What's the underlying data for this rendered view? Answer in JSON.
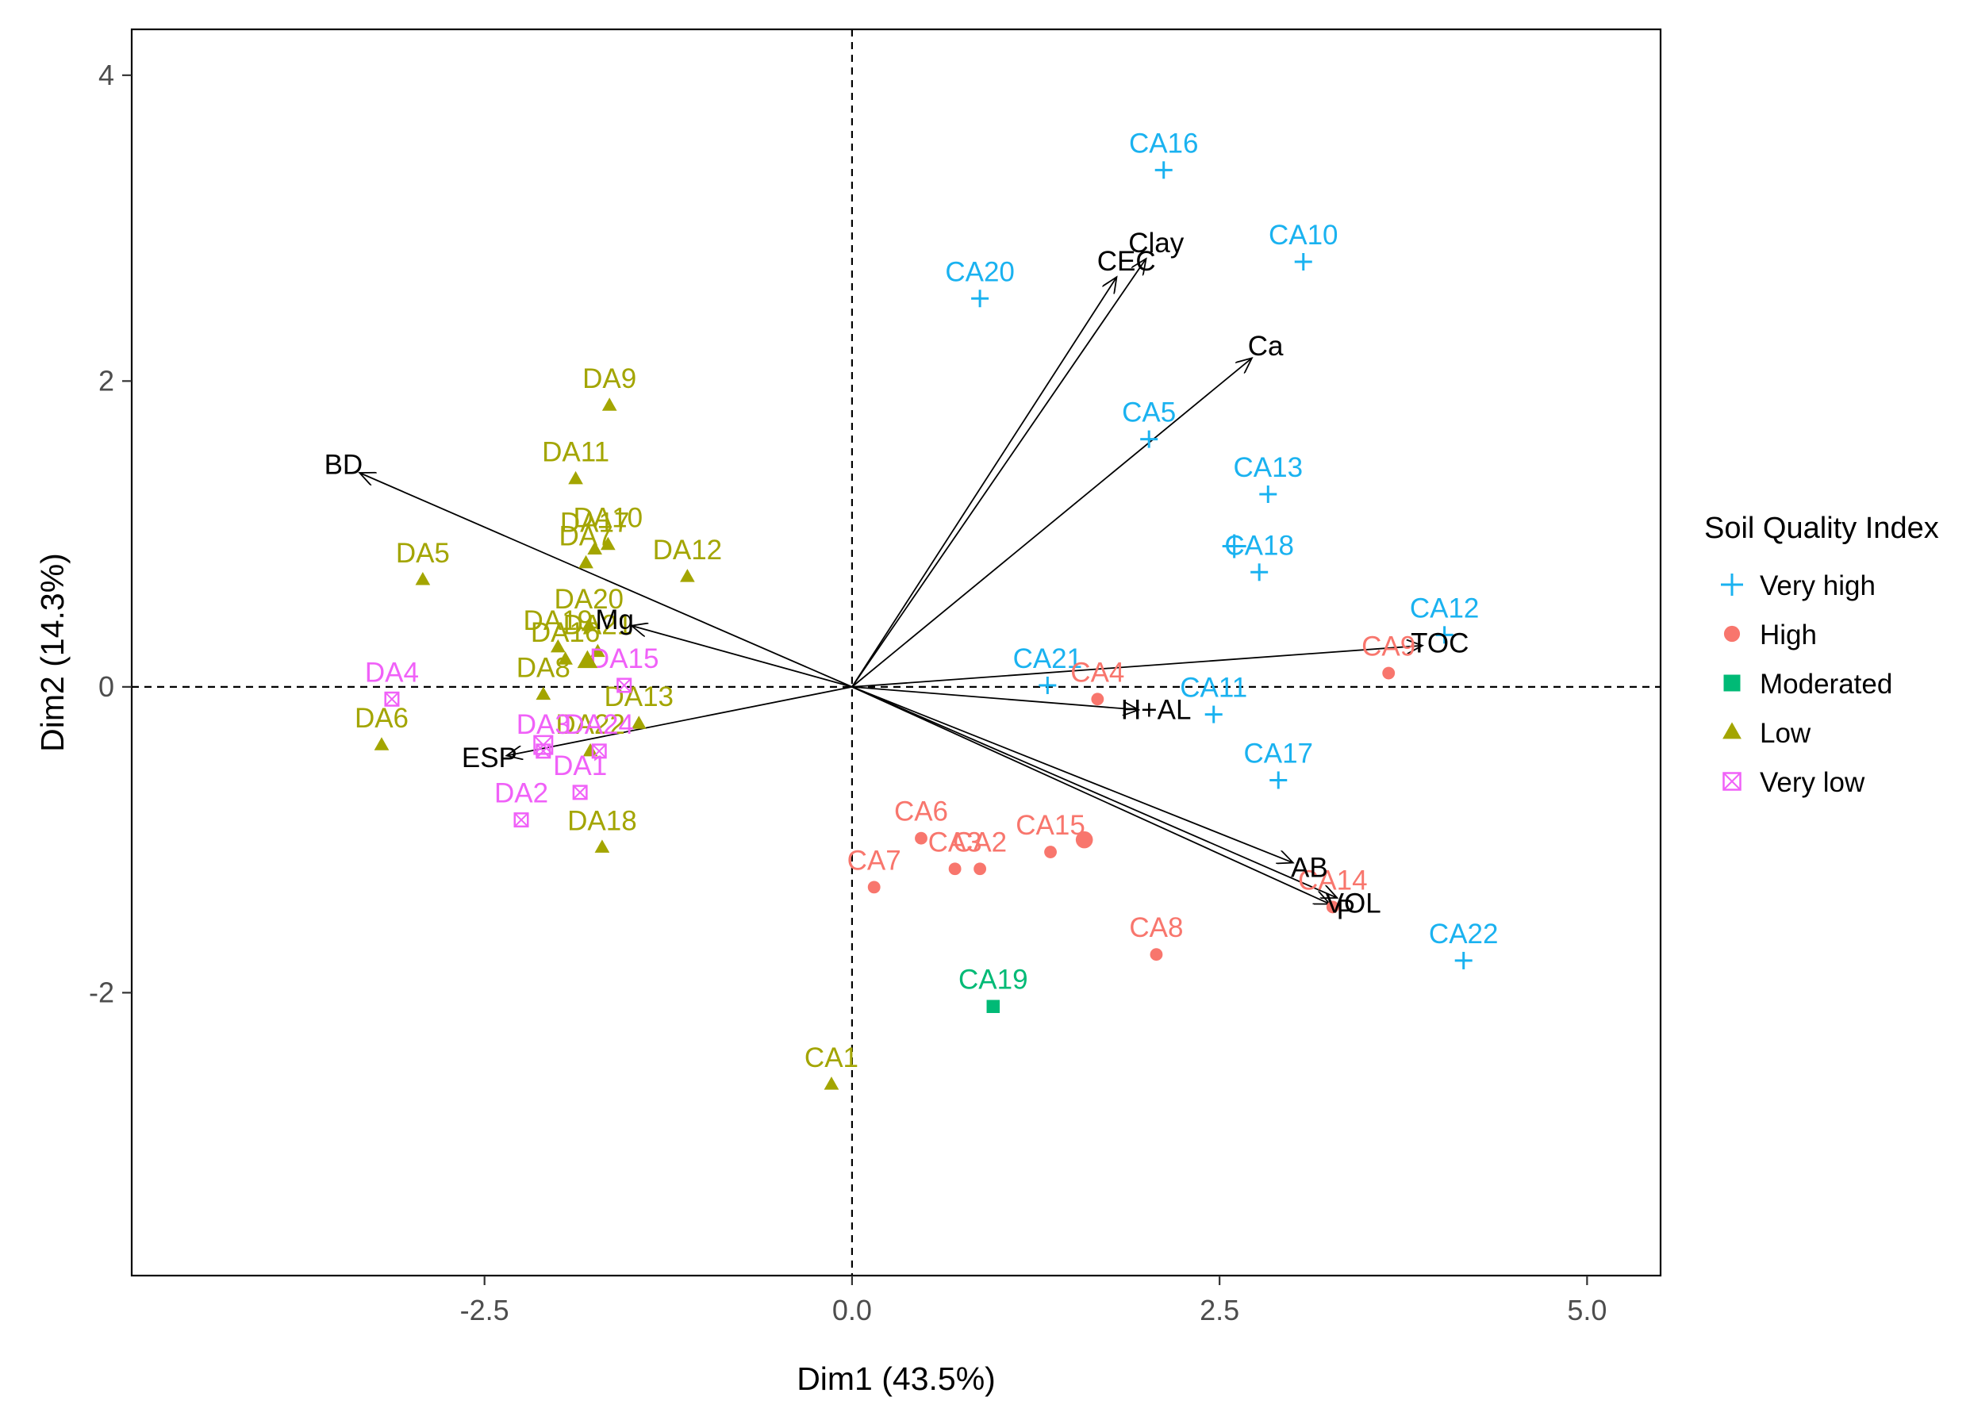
{
  "chart_data": {
    "type": "scatter",
    "subtype": "pca-biplot",
    "xlabel": "Dim1 (43.5%)",
    "ylabel": "Dim2 (14.3%)",
    "xlim": [
      -4.9,
      5.5
    ],
    "ylim": [
      -3.85,
      4.3
    ],
    "xticks": [
      {
        "value": -2.5,
        "label": "-2.5"
      },
      {
        "value": 0.0,
        "label": "0.0"
      },
      {
        "value": 2.5,
        "label": "2.5"
      },
      {
        "value": 5.0,
        "label": "5.0"
      }
    ],
    "yticks": [
      {
        "value": -2,
        "label": "-2"
      },
      {
        "value": 0,
        "label": "0"
      },
      {
        "value": 2,
        "label": "2"
      },
      {
        "value": 4,
        "label": "4"
      }
    ],
    "grid": false,
    "legend": {
      "title": "Soil Quality Index",
      "position": "right",
      "entries": [
        {
          "key": "very_high",
          "label": "Very high",
          "color": "#1ab2f0",
          "marker": "plus"
        },
        {
          "key": "high",
          "label": "High",
          "color": "#f8766d",
          "marker": "circle"
        },
        {
          "key": "moderated",
          "label": "Moderated",
          "color": "#00ba76",
          "marker": "square"
        },
        {
          "key": "low",
          "label": "Low",
          "color": "#a3a500",
          "marker": "triangle"
        },
        {
          "key": "very_low",
          "label": "Very low",
          "color": "#f061f8",
          "marker": "boxx"
        }
      ]
    },
    "vectors": [
      {
        "label": "BD",
        "x": -3.35,
        "y": 1.4
      },
      {
        "label": "Mg",
        "x": -1.5,
        "y": 0.4
      },
      {
        "label": "ESP",
        "x": -2.35,
        "y": -0.45
      },
      {
        "label": "CEC",
        "x": 1.8,
        "y": 2.68
      },
      {
        "label": "Clay",
        "x": 2.0,
        "y": 2.8
      },
      {
        "label": "Ca",
        "x": 2.72,
        "y": 2.15
      },
      {
        "label": "TOC",
        "x": 3.88,
        "y": 0.27
      },
      {
        "label": "H+AL",
        "x": 1.95,
        "y": -0.15
      },
      {
        "label": "AB",
        "x": 3.0,
        "y": -1.15
      },
      {
        "label": "P",
        "x": 3.25,
        "y": -1.42
      },
      {
        "label": "VOL",
        "x": 3.3,
        "y": -1.38
      }
    ],
    "points": [
      {
        "label": "CA16",
        "x": 2.12,
        "y": 3.38,
        "group": "very_high"
      },
      {
        "label": "CA10",
        "x": 3.07,
        "y": 2.78,
        "group": "very_high"
      },
      {
        "label": "CA20",
        "x": 0.87,
        "y": 2.54,
        "group": "very_high"
      },
      {
        "label": "CA5",
        "x": 2.02,
        "y": 1.62,
        "group": "very_high"
      },
      {
        "label": "CA13",
        "x": 2.83,
        "y": 1.26,
        "group": "very_high"
      },
      {
        "label": "CA18",
        "x": 2.77,
        "y": 0.75,
        "group": "very_high"
      },
      {
        "label": "CA12",
        "x": 4.03,
        "y": 0.34,
        "group": "very_high"
      },
      {
        "label": "CA21",
        "x": 1.33,
        "y": 0.01,
        "group": "very_high"
      },
      {
        "label": "CA11",
        "x": 2.46,
        "y": -0.18,
        "group": "very_high"
      },
      {
        "label": "CA17",
        "x": 2.9,
        "y": -0.61,
        "group": "very_high"
      },
      {
        "label": "CA22",
        "x": 4.16,
        "y": -1.79,
        "group": "very_high"
      },
      {
        "label": "CA9",
        "x": 3.65,
        "y": 0.09,
        "group": "high"
      },
      {
        "label": "CA4",
        "x": 1.67,
        "y": -0.08,
        "group": "high"
      },
      {
        "label": "CA6",
        "x": 0.47,
        "y": -0.99,
        "group": "high"
      },
      {
        "label": "CA3",
        "x": 0.7,
        "y": -1.19,
        "group": "high"
      },
      {
        "label": "CA2",
        "x": 0.87,
        "y": -1.19,
        "group": "high"
      },
      {
        "label": "CA15",
        "x": 1.35,
        "y": -1.08,
        "group": "high"
      },
      {
        "label": "CA7",
        "x": 0.15,
        "y": -1.31,
        "group": "high"
      },
      {
        "label": "CA14",
        "x": 3.27,
        "y": -1.44,
        "group": "high"
      },
      {
        "label": "CA8",
        "x": 2.07,
        "y": -1.75,
        "group": "high"
      },
      {
        "label": "CA19",
        "x": 0.96,
        "y": -2.09,
        "group": "moderated"
      },
      {
        "label": "DA9",
        "x": -1.65,
        "y": 1.84,
        "group": "low"
      },
      {
        "label": "DA11",
        "x": -1.88,
        "y": 1.36,
        "group": "low"
      },
      {
        "label": "DA10",
        "x": -1.66,
        "y": 0.93,
        "group": "low"
      },
      {
        "label": "DA17",
        "x": -1.75,
        "y": 0.9,
        "group": "low"
      },
      {
        "label": "DA7",
        "x": -1.81,
        "y": 0.81,
        "group": "low"
      },
      {
        "label": "DA12",
        "x": -1.12,
        "y": 0.72,
        "group": "low"
      },
      {
        "label": "DA5",
        "x": -2.92,
        "y": 0.7,
        "group": "low"
      },
      {
        "label": "DA20",
        "x": -1.79,
        "y": 0.4,
        "group": "low"
      },
      {
        "label": "DA19",
        "x": -2.0,
        "y": 0.26,
        "group": "low"
      },
      {
        "label": "DA21",
        "x": -1.73,
        "y": 0.23,
        "group": "low"
      },
      {
        "label": "DA16",
        "x": -1.95,
        "y": 0.18,
        "group": "low"
      },
      {
        "label": "DA8",
        "x": -2.1,
        "y": -0.05,
        "group": "low"
      },
      {
        "label": "DA13",
        "x": -1.45,
        "y": -0.24,
        "group": "low"
      },
      {
        "label": "DA6",
        "x": -3.2,
        "y": -0.38,
        "group": "low"
      },
      {
        "label": "DA22",
        "x": -1.78,
        "y": -0.42,
        "group": "low"
      },
      {
        "label": "DA18",
        "x": -1.7,
        "y": -1.05,
        "group": "low"
      },
      {
        "label": "CA1",
        "x": -0.14,
        "y": -2.6,
        "group": "low"
      },
      {
        "label": "DA4",
        "x": -3.13,
        "y": -0.08,
        "group": "very_low"
      },
      {
        "label": "DA15",
        "x": -1.55,
        "y": 0.01,
        "group": "very_low"
      },
      {
        "label": "DA24",
        "x": -1.72,
        "y": -0.42,
        "group": "very_low"
      },
      {
        "label": "DA3",
        "x": -2.1,
        "y": -0.42,
        "group": "very_low"
      },
      {
        "label": "DA1",
        "x": -1.85,
        "y": -0.69,
        "group": "very_low"
      },
      {
        "label": "DA2",
        "x": -2.25,
        "y": -0.87,
        "group": "very_low"
      }
    ],
    "centroids": [
      {
        "group": "high",
        "x": 1.58,
        "y": -1.0
      },
      {
        "group": "low",
        "x": -1.8,
        "y": 0.17
      },
      {
        "group": "very_high",
        "x": 2.6,
        "y": 0.92
      },
      {
        "group": "very_low",
        "x": -2.1,
        "y": -0.38
      }
    ]
  }
}
